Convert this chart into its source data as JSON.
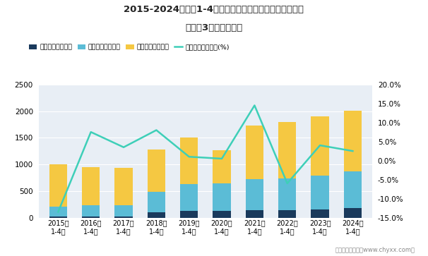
{
  "years": [
    "2015年\n1-4月",
    "2016年\n1-4月",
    "2017年\n1-4月",
    "2018年\n1-4月",
    "2019年\n1-4月",
    "2020年\n1-4月",
    "2021年\n1-4月",
    "2022年\n1-4月",
    "2023年\n1-4月",
    "2024年\n1-4月"
  ],
  "xiaoshou": [
    15,
    20,
    18,
    100,
    120,
    120,
    145,
    140,
    155,
    185
  ],
  "guanli": [
    195,
    210,
    210,
    390,
    515,
    520,
    580,
    590,
    640,
    680
  ],
  "caiwu": [
    785,
    715,
    710,
    785,
    865,
    620,
    1000,
    1060,
    1100,
    1140
  ],
  "growth": [
    -13.5,
    7.5,
    3.5,
    8.0,
    1.0,
    0.5,
    14.5,
    -6.0,
    4.0,
    2.5
  ],
  "bar_color_xiaoshou": "#1a3a5c",
  "bar_color_guanli": "#5bbcd6",
  "bar_color_caiwu": "#f5c842",
  "line_color": "#3ecfb8",
  "title_line1": "2015-2024年各年1-4月电力、热力、燃气及水生产和供应",
  "title_line2": "业企业3类费用统计图",
  "ylim_left": [
    0,
    2500
  ],
  "ylim_right": [
    -15,
    20
  ],
  "yticks_left": [
    0,
    500,
    1000,
    1500,
    2000,
    2500
  ],
  "yticks_right": [
    -15.0,
    -10.0,
    -5.0,
    0.0,
    5.0,
    10.0,
    15.0,
    20.0
  ],
  "legend_labels": [
    "销售费用（亿元）",
    "管理费用（亿元）",
    "财务费用（亿元）",
    "销售费用累计增长(%)"
  ],
  "footer": "制图：智研咨询（www.chyxx.com）",
  "bg_color": "#ffffff",
  "plot_bg_color": "#e8eef5"
}
